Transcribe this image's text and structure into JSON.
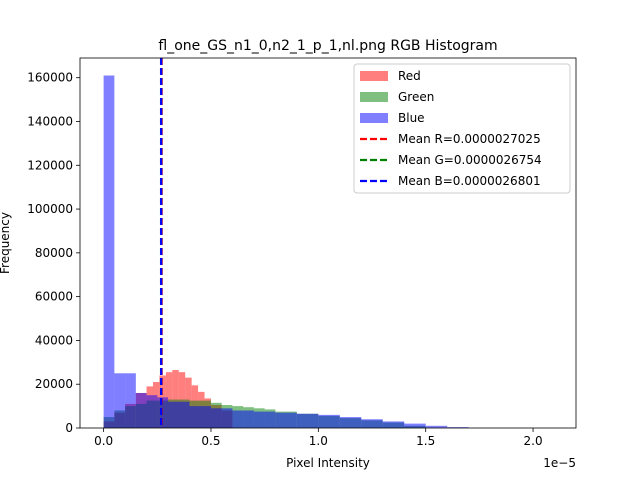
{
  "chart_data": {
    "type": "histogram",
    "title": "fl_one_GS_n1_0,n2_1_p_1,nl.png RGB Histogram",
    "xlabel": "Pixel Intensity",
    "ylabel": "Frequency",
    "x_offset_text": "1e−5",
    "x_scale_exponent": -5,
    "xlim": [
      -0.11,
      2.2
    ],
    "ylim": [
      0,
      169000
    ],
    "x_ticks": [
      0.0,
      0.5,
      1.0,
      1.5,
      2.0
    ],
    "x_tick_labels": [
      "0.0",
      "0.5",
      "1.0",
      "1.5",
      "2.0"
    ],
    "y_ticks": [
      0,
      20000,
      40000,
      60000,
      80000,
      100000,
      120000,
      140000,
      160000
    ],
    "y_tick_labels": [
      "0",
      "20000",
      "40000",
      "60000",
      "80000",
      "100000",
      "120000",
      "140000",
      "160000"
    ],
    "grid": false,
    "legend_position": "top-right",
    "series": [
      {
        "name": "Red",
        "color": "#ff0000",
        "alpha": 0.5,
        "bins": [
          [
            0.0,
            0.05
          ],
          [
            0.05,
            0.1
          ],
          [
            0.1,
            0.15
          ],
          [
            0.15,
            0.2
          ],
          [
            0.2,
            0.23
          ],
          [
            0.23,
            0.26
          ],
          [
            0.26,
            0.29
          ],
          [
            0.29,
            0.32
          ],
          [
            0.32,
            0.35
          ],
          [
            0.35,
            0.38
          ],
          [
            0.38,
            0.41
          ],
          [
            0.41,
            0.44
          ],
          [
            0.44,
            0.47
          ],
          [
            0.47,
            0.5
          ],
          [
            0.5,
            0.55
          ],
          [
            0.55,
            0.6
          ]
        ],
        "values": [
          3000,
          7000,
          11000,
          16000,
          19000,
          21000,
          24000,
          25500,
          26500,
          25500,
          23000,
          19500,
          16500,
          13500,
          10500,
          8000
        ]
      },
      {
        "name": "Green",
        "color": "#008000",
        "alpha": 0.5,
        "bins": [
          [
            0.0,
            0.05
          ],
          [
            0.05,
            0.1
          ],
          [
            0.1,
            0.15
          ],
          [
            0.15,
            0.2
          ],
          [
            0.2,
            0.3
          ],
          [
            0.3,
            0.4
          ],
          [
            0.4,
            0.5
          ],
          [
            0.5,
            0.55
          ],
          [
            0.55,
            0.6
          ],
          [
            0.6,
            0.65
          ],
          [
            0.65,
            0.7
          ],
          [
            0.7,
            0.75
          ],
          [
            0.75,
            0.8
          ],
          [
            0.8,
            0.9
          ],
          [
            0.9,
            1.0
          ],
          [
            1.0,
            1.1
          ],
          [
            1.1,
            1.2
          ],
          [
            1.2,
            1.3
          ],
          [
            1.3,
            1.4
          ],
          [
            1.4,
            1.5
          ]
        ],
        "values": [
          5000,
          8000,
          10000,
          11000,
          12500,
          13000,
          12500,
          11500,
          10500,
          10000,
          9500,
          9000,
          8500,
          7500,
          6500,
          5500,
          4500,
          3500,
          2500,
          1000
        ]
      },
      {
        "name": "Blue",
        "color": "#0000ff",
        "alpha": 0.5,
        "bins": [
          [
            0.0,
            0.05
          ],
          [
            0.05,
            0.1
          ],
          [
            0.1,
            0.15
          ],
          [
            0.15,
            0.2
          ],
          [
            0.2,
            0.25
          ],
          [
            0.25,
            0.3
          ],
          [
            0.3,
            0.4
          ],
          [
            0.4,
            0.5
          ],
          [
            0.5,
            0.6
          ],
          [
            0.6,
            0.7
          ],
          [
            0.7,
            0.8
          ],
          [
            0.8,
            0.9
          ],
          [
            0.9,
            1.0
          ],
          [
            1.0,
            1.1
          ],
          [
            1.1,
            1.2
          ],
          [
            1.2,
            1.3
          ],
          [
            1.3,
            1.4
          ],
          [
            1.4,
            1.5
          ],
          [
            1.5,
            1.6
          ],
          [
            1.6,
            1.7
          ]
        ],
        "values": [
          161000,
          25000,
          25000,
          16000,
          15000,
          14000,
          12000,
          10000,
          9000,
          8000,
          7500,
          7000,
          6500,
          6000,
          5000,
          4000,
          3000,
          2000,
          1000,
          400
        ]
      }
    ],
    "mean_lines": [
      {
        "label": "Mean R=0.0000027025",
        "x": 0.27025,
        "color": "#ff0000"
      },
      {
        "label": "Mean G=0.0000026754",
        "x": 0.26754,
        "color": "#008000"
      },
      {
        "label": "Mean B=0.0000026801",
        "x": 0.26801,
        "color": "#0000ff"
      }
    ]
  }
}
